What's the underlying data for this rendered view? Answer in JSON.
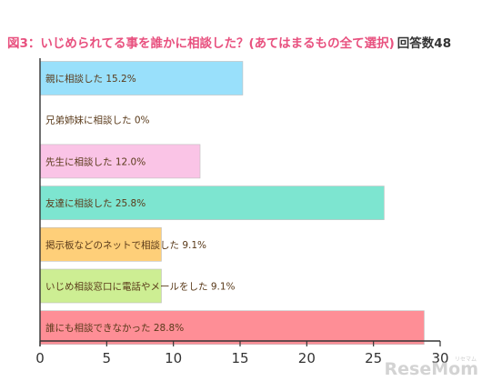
{
  "title": "図3：いじめられてる事を誰かに相談した？(あてはまるもの全て選択)",
  "respondents": "回答数48",
  "watermark": {
    "text": "ReseMom",
    "kana": "リセマム"
  },
  "chart_data": {
    "type": "bar",
    "orientation": "horizontal",
    "categories": [
      "親に相談した",
      "兄弟姉妹に相談した",
      "先生に相談した",
      "友達に相談した",
      "掲示板などのネットで相談した",
      "いじめ相談窓口に電話やメールをした",
      "誰にも相談できなかった"
    ],
    "values": [
      15.2,
      0,
      12.0,
      25.8,
      9.1,
      9.1,
      28.8
    ],
    "data_labels": [
      "親に相談した  15.2%",
      "兄弟姉妹に相談した  0%",
      "先生に相談した  12.0%",
      "友達に相談した  25.8%",
      "掲示板などのネットで相談した  9.1%",
      "いじめ相談窓口に電話やメールをした  9.1%",
      "誰にも相談できなかった  28.8%"
    ],
    "colors": [
      "#99e0fb",
      "#ffffff",
      "#fac4e6",
      "#7de5d0",
      "#fecf79",
      "#cdee93",
      "#fe8e96"
    ],
    "xlim": [
      0,
      30
    ],
    "xticks": [
      "0",
      "5",
      "10",
      "15",
      "20",
      "25",
      "30"
    ],
    "xlabel": "",
    "ylabel": "",
    "grid": false,
    "legend": "none",
    "label_color": "#5a3a1a"
  }
}
